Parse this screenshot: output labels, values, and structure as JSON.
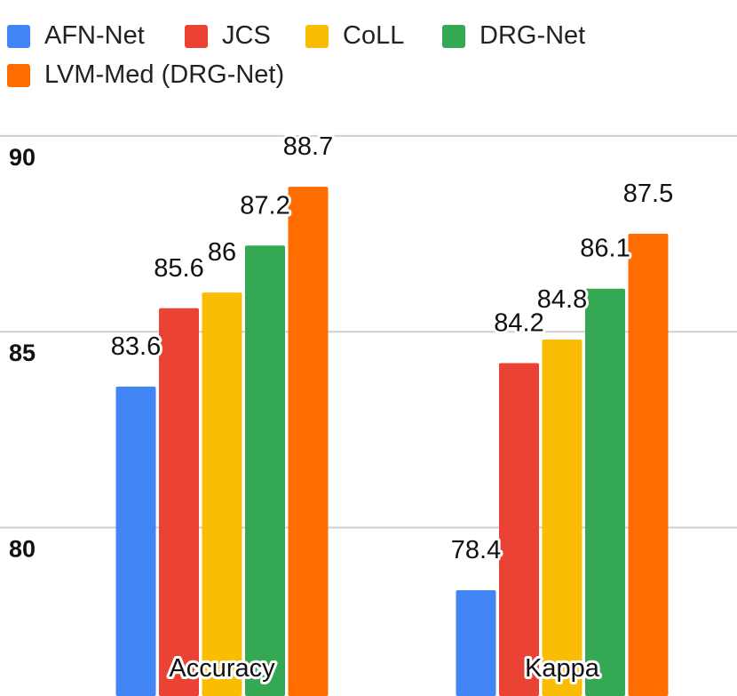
{
  "chart_data": {
    "type": "bar",
    "title": "",
    "xlabel": "",
    "ylabel": "",
    "categories": [
      "Accuracy",
      "Kappa"
    ],
    "series": [
      {
        "name": "AFN-Net",
        "color": "#4285f4",
        "values": [
          83.6,
          78.4
        ]
      },
      {
        "name": "JCS",
        "color": "#ea4335",
        "values": [
          85.6,
          84.2
        ]
      },
      {
        "name": "CoLL",
        "color": "#fbbc04",
        "values": [
          86,
          84.8
        ]
      },
      {
        "name": "DRG-Net",
        "color": "#34a853",
        "values": [
          87.2,
          86.1
        ]
      },
      {
        "name": "LVM-Med (DRG-Net)",
        "color": "#ff6d01",
        "values": [
          88.7,
          87.5
        ]
      }
    ],
    "data_labels": [
      [
        "83.6",
        "78.4"
      ],
      [
        "85.6",
        "84.2"
      ],
      [
        "86",
        "84.8"
      ],
      [
        "87.2",
        "86.1"
      ],
      [
        "88.7",
        "87.5"
      ]
    ],
    "yticks": [
      80,
      85,
      90
    ],
    "ytick_labels": [
      "80",
      "85",
      "90"
    ],
    "ylim": [
      75.7,
      91.2
    ],
    "grid": true,
    "legend_position": "top"
  }
}
